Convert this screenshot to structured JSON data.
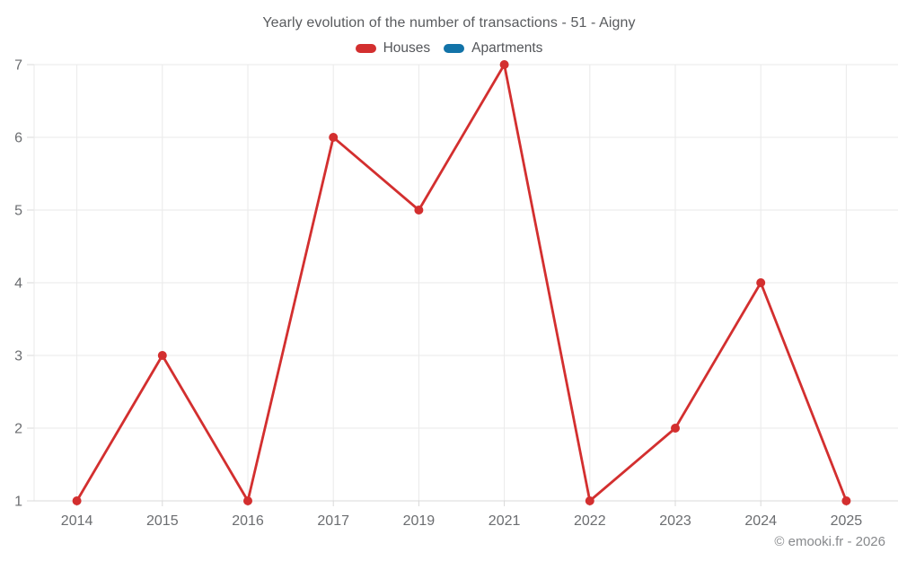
{
  "title": "Yearly evolution of the number of transactions - 51 - Aigny",
  "footer": "© emooki.fr - 2026",
  "chart_data": {
    "type": "line",
    "title": "Yearly evolution of the number of transactions - 51 - Aigny",
    "categories": [
      "2014",
      "2015",
      "2016",
      "2017",
      "2019",
      "2021",
      "2022",
      "2023",
      "2024",
      "2025"
    ],
    "series": [
      {
        "name": "Houses",
        "color": "#d32f2f",
        "values": [
          1,
          3,
          1,
          6,
          5,
          7,
          1,
          2,
          4,
          1
        ]
      },
      {
        "name": "Apartments",
        "color": "#1273a8",
        "values": []
      }
    ],
    "xlabel": "",
    "ylabel": "",
    "ylim": [
      1,
      7
    ],
    "yticks": [
      1,
      2,
      3,
      4,
      5,
      6,
      7
    ],
    "grid": true,
    "legend_position": "top",
    "marker_radius": 5,
    "line_width": 2.8,
    "grid_color": "#eaeaea",
    "axis_color": "#d9d9d9",
    "tick_label_color": "#6b6d70",
    "annotation": "© emooki.fr - 2026"
  }
}
